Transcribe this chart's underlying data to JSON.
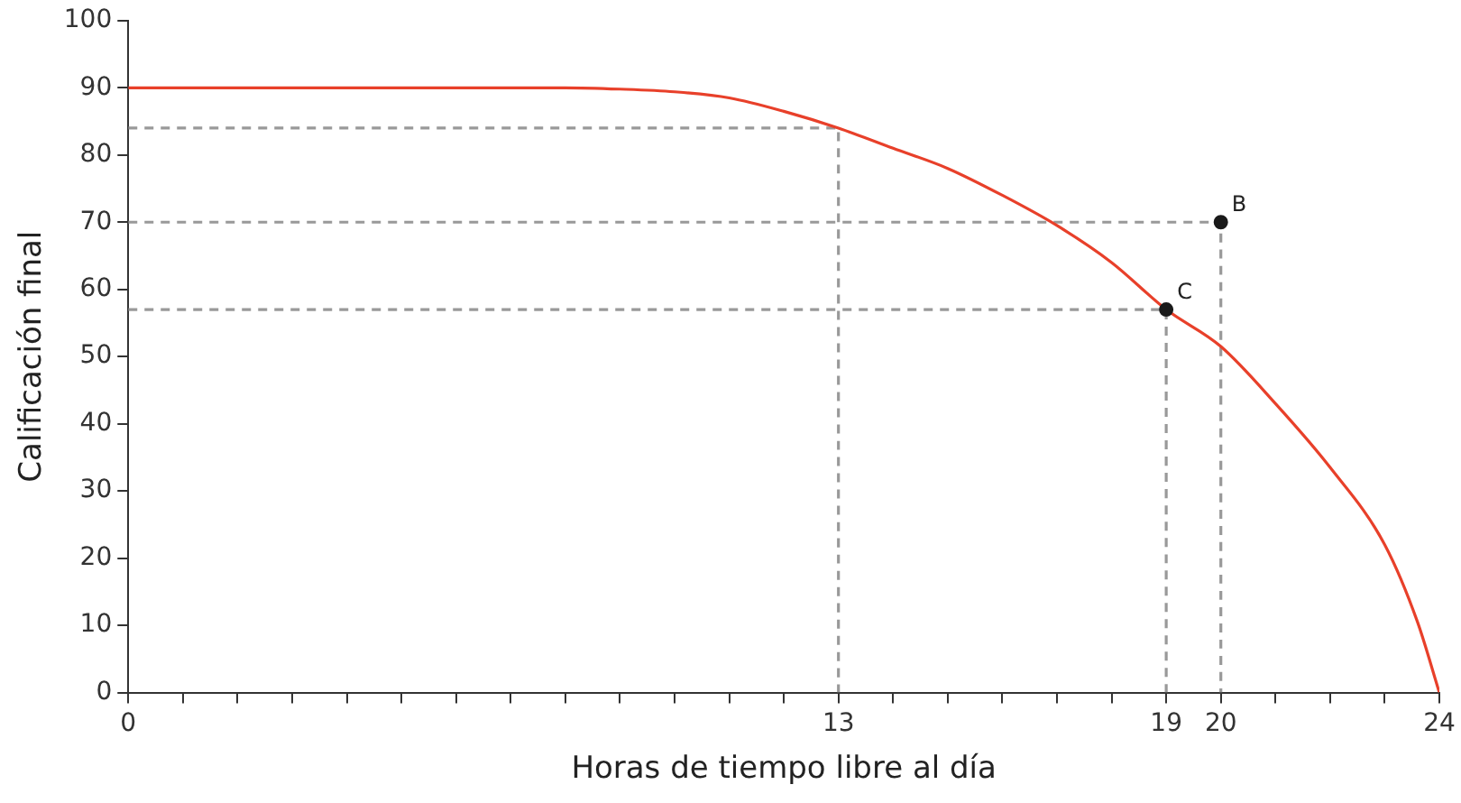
{
  "chart_data": {
    "type": "line",
    "xlabel": "Horas de tiempo libre al día",
    "ylabel": "Calificación final",
    "xlim": [
      0,
      24
    ],
    "ylim": [
      0,
      100
    ],
    "xticks": [
      0,
      {
        "value": 1,
        "label": null
      },
      {
        "value": 2,
        "label": null
      },
      {
        "value": 3,
        "label": null
      },
      {
        "value": 4,
        "label": null
      },
      {
        "value": 5,
        "label": null
      },
      {
        "value": 6,
        "label": null
      },
      {
        "value": 7,
        "label": null
      },
      {
        "value": 8,
        "label": null
      },
      {
        "value": 9,
        "label": null
      },
      {
        "value": 10,
        "label": null
      },
      {
        "value": 11,
        "label": null
      },
      {
        "value": 12,
        "label": null
      },
      13,
      {
        "value": 14,
        "label": null
      },
      {
        "value": 15,
        "label": null
      },
      {
        "value": 16,
        "label": null
      },
      {
        "value": 17,
        "label": null
      },
      {
        "value": 18,
        "label": null
      },
      19,
      20,
      {
        "value": 21,
        "label": null
      },
      {
        "value": 22,
        "label": null
      },
      {
        "value": 23,
        "label": null
      },
      24
    ],
    "yticks": [
      0,
      10,
      20,
      30,
      40,
      50,
      60,
      70,
      80,
      90,
      100
    ],
    "grid": false,
    "legend": false,
    "marker": "none",
    "series": [
      {
        "color": "#e8402a",
        "x": [
          0,
          8,
          9,
          10,
          11,
          12,
          13,
          14,
          15,
          16,
          17,
          18,
          19,
          20,
          21,
          22,
          23,
          23.6,
          24
        ],
        "values": [
          90,
          90,
          89.8,
          89.4,
          88.5,
          86.5,
          84,
          81,
          78,
          74,
          69.5,
          64,
          57,
          51.5,
          43,
          33.5,
          22,
          10.5,
          0
        ]
      },
      {
        "type": "line",
        "color": "#999999",
        "line_style": "dashed",
        "x": [
          0,
          13,
          13
        ],
        "values": [
          84,
          84,
          0
        ]
      },
      {
        "type": "line",
        "color": "#999999",
        "line_style": "dashed",
        "x": [
          0,
          20,
          20
        ],
        "values": [
          70,
          70,
          0
        ]
      },
      {
        "type": "line",
        "color": "#999999",
        "line_style": "dashed",
        "x": [
          0,
          19,
          19
        ],
        "values": [
          57,
          57,
          0
        ]
      },
      {
        "type": "scatter",
        "color": "#1a1a1a",
        "marker": "circle",
        "x": [
          20,
          19
        ],
        "values": [
          70,
          57
        ]
      }
    ],
    "annotations": [
      {
        "text": "B",
        "x": 20,
        "y": 70
      },
      {
        "text": "C",
        "x": 19,
        "y": 57
      }
    ]
  }
}
